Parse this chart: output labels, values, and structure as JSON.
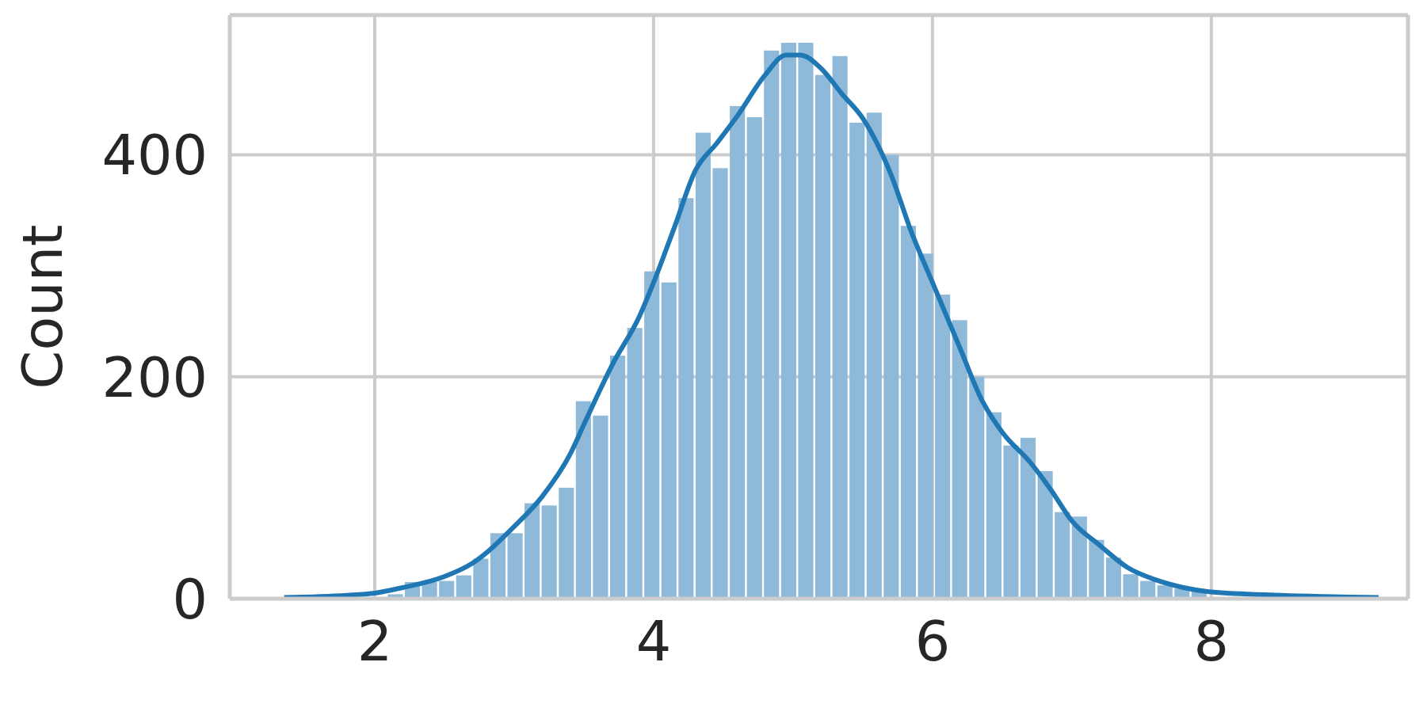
{
  "chart_data": {
    "type": "histogram",
    "ylabel": "Count",
    "bins": [
      1.35,
      1.4727,
      1.5953,
      1.718,
      1.8406,
      1.9633,
      2.0859,
      2.2086,
      2.3313,
      2.4539,
      2.5766,
      2.6992,
      2.8219,
      2.9445,
      3.0672,
      3.1898,
      3.3125,
      3.4352,
      3.5578,
      3.6805,
      3.8031,
      3.9258,
      4.0484,
      4.1711,
      4.2938,
      4.4164,
      4.5391,
      4.6617,
      4.7844,
      4.907,
      5.0297,
      5.1523,
      5.275,
      5.3977,
      5.5203,
      5.643,
      5.7656,
      5.8883,
      6.0109,
      6.1336,
      6.2563,
      6.3789,
      6.5016,
      6.6242,
      6.7469,
      6.8695,
      6.9922,
      7.1148,
      7.2375,
      7.3602,
      7.4828,
      7.6055,
      7.7281,
      7.8508,
      7.9734,
      8.0961,
      8.2188,
      8.3414,
      8.4641,
      8.5867,
      8.7094,
      8.832,
      8.9547,
      9.0773,
      9.2
    ],
    "values": [
      null,
      null,
      null,
      null,
      null,
      null,
      4,
      15,
      15,
      16,
      21,
      36,
      59,
      59,
      86,
      84,
      100,
      178,
      165,
      219,
      244,
      295,
      285,
      361,
      420,
      388,
      444,
      434,
      494,
      501,
      501,
      472,
      489,
      429,
      438,
      400,
      336,
      311,
      274,
      251,
      200,
      168,
      138,
      145,
      115,
      78,
      74,
      53,
      37,
      22,
      16,
      12,
      9,
      7,
      null,
      null,
      null,
      null,
      null,
      null,
      null,
      null,
      null,
      null
    ],
    "color": "#8fb9d9",
    "series": [
      {
        "type": "line",
        "color": "#1f77b4",
        "x": [
          1.35,
          1.8,
          2.0,
          2.2,
          2.5,
          2.7,
          3.0,
          3.2,
          3.4,
          3.5,
          3.7,
          3.9,
          4.0,
          4.15,
          4.3,
          4.45,
          4.6,
          4.8,
          4.95,
          5.05,
          5.2,
          5.35,
          5.5,
          5.7,
          5.85,
          6.0,
          6.2,
          6.35,
          6.5,
          6.7,
          6.85,
          7.0,
          7.2,
          7.4,
          7.6,
          7.8,
          8.0,
          8.5,
          9.2
        ],
        "values": [
          1,
          3,
          5,
          10,
          20,
          32,
          65,
          92,
          130,
          157,
          210,
          255,
          285,
          335,
          386,
          410,
          435,
          472,
          490,
          490,
          478,
          455,
          433,
          383,
          330,
          285,
          225,
          180,
          150,
          123,
          98,
          70,
          48,
          28,
          17,
          10,
          6,
          3,
          1
        ]
      }
    ],
    "xlim": [
      0.96,
      9.41
    ],
    "ylim": [
      0,
      526
    ],
    "xticks": [
      2,
      4,
      6,
      8
    ],
    "yticks": [
      0,
      200,
      400
    ],
    "grid": true
  }
}
